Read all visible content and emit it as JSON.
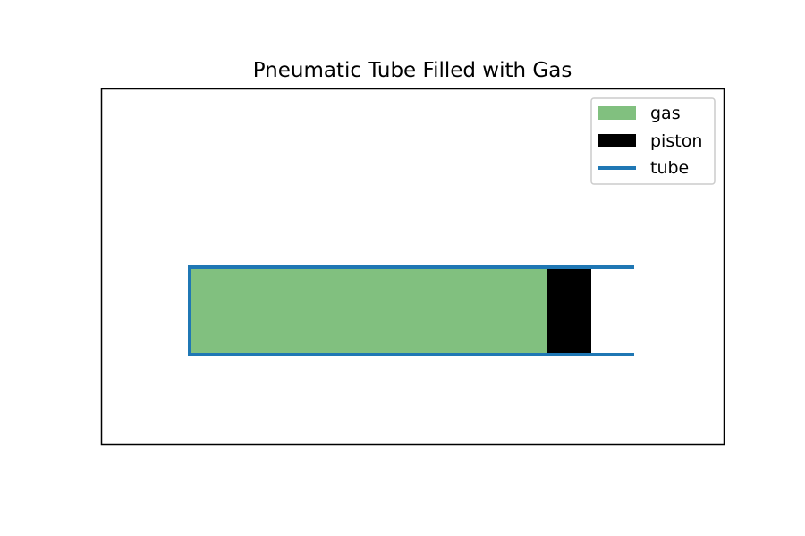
{
  "diagram": {
    "title": "Pneumatic Tube Filled with Gas",
    "legend": {
      "location": "upper right",
      "entries": [
        {
          "key": "gas",
          "label": "gas",
          "kind": "patch",
          "color": "#81c07f"
        },
        {
          "key": "piston",
          "label": "piston",
          "kind": "patch",
          "color": "#000000"
        },
        {
          "key": "tube",
          "label": "tube",
          "kind": "line",
          "color": "#1f77b4"
        }
      ]
    },
    "colors": {
      "gas": "#81c07f",
      "piston": "#000000",
      "tube": "#1f77b4",
      "frame": "#000000",
      "legend_border": "#cccccc"
    }
  }
}
